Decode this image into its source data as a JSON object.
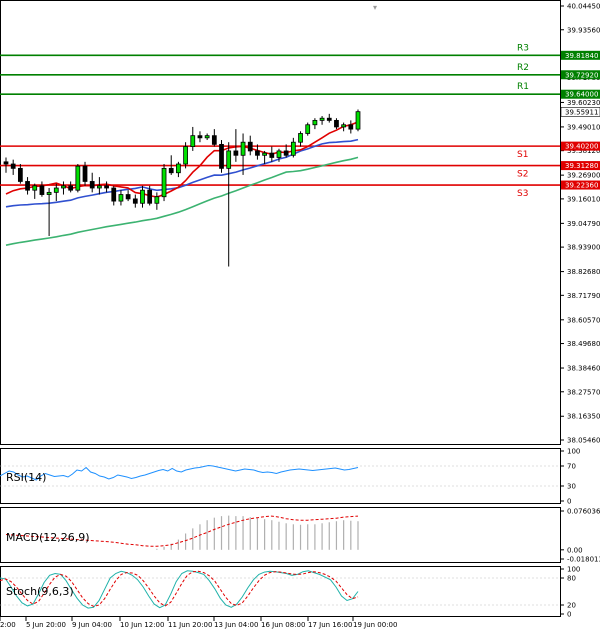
{
  "chart_data": {
    "type": "candlestick",
    "main": {
      "price_axis": [
        "40.04450",
        "39.93560",
        "39.82670",
        "39.71780",
        "39.60230",
        "39.49010",
        "39.38120",
        "39.26900",
        "39.16010",
        "39.04790",
        "38.93900",
        "38.82680",
        "38.71790",
        "38.60570",
        "38.49680",
        "38.38460",
        "38.27570",
        "38.16350",
        "38.05460"
      ],
      "ylim": [
        38.0546,
        40.0445
      ],
      "current_price": "39.55911",
      "x_labels": [
        "2:00",
        "5 Jun 20:00",
        "9 Jun 04:00",
        "10 Jun 12:00",
        "11 Jun 20:00",
        "13 Jun 04:00",
        "16 Jun 08:00",
        "17 Jun 16:00",
        "19 Jun 00:00"
      ],
      "levels": [
        {
          "name": "R3",
          "price": "39.81840",
          "value": 39.8184,
          "color": "#008000"
        },
        {
          "name": "R2",
          "price": "39.72920",
          "value": 39.7292,
          "color": "#008000"
        },
        {
          "name": "R1",
          "price": "39.64000",
          "value": 39.64,
          "color": "#008000"
        },
        {
          "name": "S1",
          "price": "39.40200",
          "value": 39.402,
          "color": "#e00000"
        },
        {
          "name": "S2",
          "price": "39.31280",
          "value": 39.3128,
          "color": "#e00000"
        },
        {
          "name": "S3",
          "price": "39.22360",
          "value": 39.2236,
          "color": "#e00000"
        }
      ],
      "candles": [
        [
          39.33,
          39.35,
          39.28,
          39.32
        ],
        [
          39.32,
          39.34,
          39.27,
          39.3
        ],
        [
          39.3,
          39.32,
          39.23,
          39.24
        ],
        [
          39.24,
          39.26,
          39.18,
          39.2
        ],
        [
          39.2,
          39.23,
          39.16,
          39.22
        ],
        [
          39.22,
          39.24,
          39.17,
          39.18
        ],
        [
          39.18,
          39.21,
          38.99,
          39.19
        ],
        [
          39.19,
          39.23,
          39.15,
          39.21
        ],
        [
          39.21,
          39.24,
          39.18,
          39.22
        ],
        [
          39.22,
          39.24,
          39.19,
          39.2
        ],
        [
          39.2,
          39.32,
          39.19,
          39.31
        ],
        [
          39.31,
          39.33,
          39.22,
          39.24
        ],
        [
          39.24,
          39.28,
          39.19,
          39.21
        ],
        [
          39.21,
          39.26,
          39.18,
          39.22
        ],
        [
          39.22,
          39.24,
          39.19,
          39.21
        ],
        [
          39.21,
          39.22,
          39.13,
          39.15
        ],
        [
          39.15,
          39.2,
          39.13,
          39.18
        ],
        [
          39.18,
          39.2,
          39.15,
          39.16
        ],
        [
          39.16,
          39.18,
          39.12,
          39.14
        ],
        [
          39.14,
          39.22,
          39.12,
          39.2
        ],
        [
          39.2,
          39.22,
          39.13,
          39.14
        ],
        [
          39.14,
          39.19,
          39.11,
          39.17
        ],
        [
          39.17,
          39.32,
          39.15,
          39.3
        ],
        [
          39.3,
          39.36,
          39.27,
          39.28
        ],
        [
          39.28,
          39.33,
          39.26,
          39.32
        ],
        [
          39.32,
          39.42,
          39.3,
          39.4
        ],
        [
          39.4,
          39.49,
          39.38,
          39.45
        ],
        [
          39.45,
          39.47,
          39.42,
          39.44
        ],
        [
          39.44,
          39.46,
          39.43,
          39.45
        ],
        [
          39.45,
          39.48,
          39.4,
          39.41
        ],
        [
          39.41,
          39.43,
          39.28,
          39.3
        ],
        [
          39.3,
          39.42,
          38.85,
          39.38
        ],
        [
          39.38,
          39.48,
          39.33,
          39.36
        ],
        [
          39.36,
          39.46,
          39.27,
          39.42
        ],
        [
          39.42,
          39.45,
          39.36,
          39.38
        ],
        [
          39.38,
          39.41,
          39.34,
          39.36
        ],
        [
          39.36,
          39.38,
          39.32,
          39.37
        ],
        [
          39.37,
          39.4,
          39.33,
          39.35
        ],
        [
          39.35,
          39.39,
          39.33,
          39.38
        ],
        [
          39.38,
          39.41,
          39.35,
          39.36
        ],
        [
          39.36,
          39.44,
          39.35,
          39.42
        ],
        [
          39.42,
          39.47,
          39.4,
          39.46
        ],
        [
          39.46,
          39.51,
          39.45,
          39.5
        ],
        [
          39.5,
          39.53,
          39.48,
          39.52
        ],
        [
          39.52,
          39.54,
          39.5,
          39.53
        ],
        [
          39.53,
          39.55,
          39.51,
          39.52
        ],
        [
          39.52,
          39.53,
          39.48,
          39.49
        ],
        [
          39.49,
          39.51,
          39.47,
          39.5
        ],
        [
          39.5,
          39.52,
          39.46,
          39.48
        ],
        [
          39.48,
          39.57,
          39.47,
          39.56
        ]
      ]
    },
    "rsi": {
      "title": "RSI(14)",
      "axis": [
        "100",
        "70",
        "30",
        "0"
      ],
      "ylim": [
        0,
        100
      ],
      "values": [
        50,
        55,
        60,
        58,
        52,
        48,
        50,
        46,
        42,
        50,
        55,
        52,
        49,
        50,
        51,
        48,
        54,
        62,
        60,
        67,
        58,
        55,
        50,
        48,
        44,
        47,
        52,
        50,
        48,
        45,
        47,
        50,
        52,
        55,
        58,
        61,
        63,
        60,
        65,
        60,
        58,
        62,
        64,
        66,
        67,
        69,
        71,
        70,
        68,
        66,
        64,
        62,
        60,
        62,
        64,
        63,
        62,
        59,
        57,
        58,
        57,
        55,
        58,
        60,
        62,
        63,
        64,
        63,
        62,
        61,
        62,
        63,
        64,
        65,
        66,
        64,
        62,
        63,
        65,
        67
      ]
    },
    "macd": {
      "title": "MACD(12,26,9)",
      "axis": [
        "0.076036",
        "0.00",
        "-0.018013"
      ],
      "ylim": [
        -0.018013,
        0.076036
      ],
      "histogram": [
        0.0,
        0.0,
        0.0,
        0.0,
        0.0,
        0.0,
        0.0,
        0.0,
        0.0,
        0.0,
        0.0,
        0.0,
        0.0,
        0.0,
        0.0,
        0.0,
        0.0,
        0.0,
        0.0,
        0.0,
        0.0,
        0.002,
        0.006,
        0.012,
        0.02,
        0.032,
        0.042,
        0.05,
        0.058,
        0.063,
        0.066,
        0.067,
        0.066,
        0.066,
        0.064,
        0.062,
        0.06,
        0.058,
        0.055,
        0.052,
        0.05,
        0.049,
        0.05,
        0.05,
        0.052,
        0.054,
        0.056,
        0.058,
        0.057,
        0.056
      ],
      "signal": [
        0.03,
        0.029,
        0.028,
        0.027,
        0.026,
        0.025,
        0.024,
        0.023,
        0.022,
        0.021,
        0.02,
        0.019,
        0.018,
        0.017,
        0.016,
        0.015,
        0.013,
        0.011,
        0.01,
        0.008,
        0.007,
        0.007,
        0.008,
        0.01,
        0.014,
        0.018,
        0.023,
        0.029,
        0.034,
        0.04,
        0.045,
        0.05,
        0.054,
        0.058,
        0.061,
        0.063,
        0.065,
        0.066,
        0.064,
        0.061,
        0.059,
        0.058,
        0.058,
        0.059,
        0.06,
        0.061,
        0.062,
        0.064,
        0.065,
        0.066
      ]
    },
    "stoch": {
      "title": "Stoch(9,6,3)",
      "axis": [
        "100",
        "80",
        "20",
        "0"
      ],
      "ylim": [
        0,
        100
      ],
      "main": [
        80,
        78,
        60,
        40,
        25,
        18,
        22,
        45,
        70,
        86,
        90,
        88,
        74,
        54,
        35,
        20,
        13,
        15,
        30,
        55,
        80,
        90,
        95,
        92,
        86,
        76,
        60,
        40,
        22,
        14,
        20,
        44,
        72,
        90,
        96,
        95,
        92,
        88,
        74,
        56,
        35,
        20,
        15,
        22,
        38,
        58,
        76,
        88,
        93,
        95,
        94,
        92,
        90,
        86,
        88,
        94,
        96,
        92,
        88,
        82,
        76,
        60,
        40,
        30,
        34,
        50
      ],
      "signal": [
        74,
        78,
        72,
        60,
        44,
        30,
        22,
        28,
        46,
        66,
        82,
        88,
        84,
        72,
        54,
        36,
        23,
        17,
        20,
        34,
        55,
        74,
        88,
        92,
        91,
        86,
        74,
        58,
        40,
        25,
        18,
        26,
        46,
        68,
        86,
        94,
        95,
        92,
        85,
        73,
        55,
        37,
        23,
        19,
        25,
        40,
        58,
        74,
        86,
        92,
        94,
        93,
        91,
        89,
        88,
        89,
        92,
        94,
        92,
        88,
        82,
        73,
        58,
        43,
        34,
        38
      ]
    }
  }
}
